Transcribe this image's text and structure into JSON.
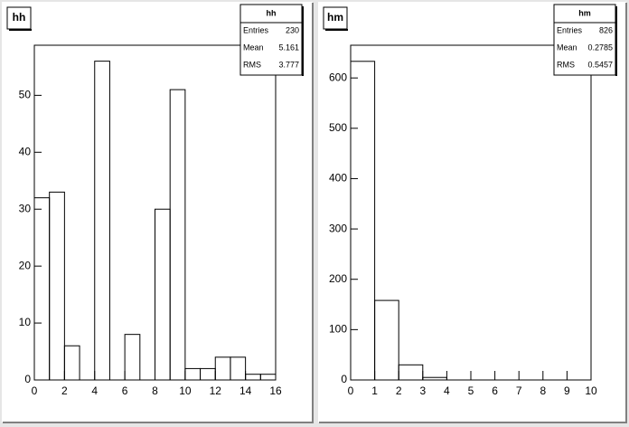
{
  "chart_data": [
    {
      "type": "histogram",
      "title": "hh",
      "bins": [
        0,
        1,
        2,
        3,
        4,
        5,
        6,
        7,
        8,
        9,
        10,
        11,
        12,
        13,
        14,
        15,
        16
      ],
      "values": [
        32,
        33,
        6,
        0,
        56,
        0,
        8,
        0,
        30,
        51,
        2,
        2,
        4,
        4,
        1,
        1
      ],
      "color": "#000000",
      "xlim": [
        0,
        16
      ],
      "ylim": [
        0,
        58.8
      ],
      "xticks": [
        0,
        2,
        4,
        6,
        8,
        10,
        12,
        14,
        16
      ],
      "yticks": [
        0,
        10,
        20,
        30,
        40,
        50
      ],
      "stats": {
        "title": "hh",
        "labels": [
          "Entries",
          "Mean",
          "RMS"
        ],
        "values": [
          230,
          5.161,
          3.777
        ]
      }
    },
    {
      "type": "histogram",
      "title": "hm",
      "bins": [
        0,
        1,
        2,
        3,
        4,
        5,
        6,
        7,
        8,
        9,
        10
      ],
      "values": [
        633,
        158,
        30,
        5,
        0,
        0,
        0,
        0,
        0,
        0
      ],
      "color": "#000000",
      "xlim": [
        0,
        10
      ],
      "ylim": [
        0,
        665
      ],
      "xticks": [
        0,
        1,
        2,
        3,
        4,
        5,
        6,
        7,
        8,
        9,
        10
      ],
      "yticks": [
        0,
        100,
        200,
        300,
        400,
        500,
        600
      ],
      "stats": {
        "title": "hm",
        "labels": [
          "Entries",
          "Mean",
          "RMS"
        ],
        "values": [
          826,
          0.2785,
          0.5457
        ]
      }
    }
  ]
}
